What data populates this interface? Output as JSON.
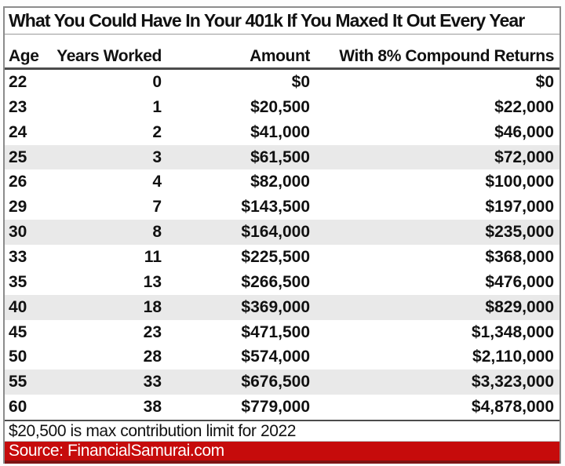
{
  "chart_data": {
    "type": "table",
    "title": "What You Could Have In Your 401k If You Maxed It Out Every Year",
    "columns": [
      "Age",
      "Years Worked",
      "Amount",
      "With 8% Compound Returns"
    ],
    "rows": [
      [
        "22",
        "0",
        "$0",
        "$0"
      ],
      [
        "23",
        "1",
        "$20,500",
        "$22,000"
      ],
      [
        "24",
        "2",
        "$41,000",
        "$46,000"
      ],
      [
        "25",
        "3",
        "$61,500",
        "$72,000"
      ],
      [
        "26",
        "4",
        "$82,000",
        "$100,000"
      ],
      [
        "29",
        "7",
        "$143,500",
        "$197,000"
      ],
      [
        "30",
        "8",
        "$164,000",
        "$235,000"
      ],
      [
        "33",
        "11",
        "$225,500",
        "$368,000"
      ],
      [
        "35",
        "13",
        "$266,500",
        "$476,000"
      ],
      [
        "40",
        "18",
        "$369,000",
        "$829,000"
      ],
      [
        "45",
        "23",
        "$471,500",
        "$1,348,000"
      ],
      [
        "50",
        "28",
        "$574,000",
        "$2,110,000"
      ],
      [
        "55",
        "33",
        "$676,500",
        "$3,323,000"
      ],
      [
        "60",
        "38",
        "$779,000",
        "$4,878,000"
      ]
    ],
    "shaded_row_indices": [
      3,
      6,
      9,
      12
    ],
    "footnote": "$20,500 is max contribution limit for 2022",
    "source": "Source: FinancialSamurai.com"
  },
  "colors": {
    "banner_red": "#c60b0b",
    "banner_border": "#7d1414",
    "row_shade": "#e9e9e9",
    "frame_border": "#8c8c8c",
    "dark_rule": "#4c4c4c"
  }
}
